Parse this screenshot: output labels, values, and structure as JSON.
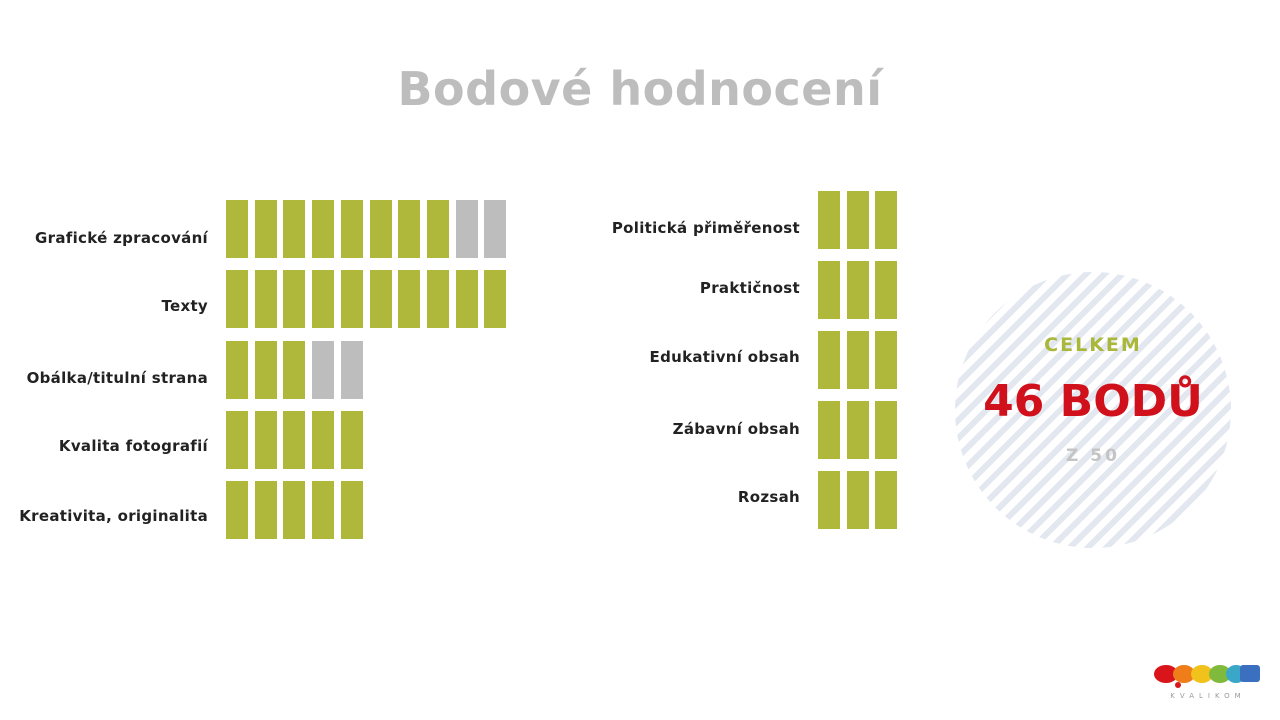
{
  "title": "Bodové hodnocení",
  "colors": {
    "filled": "#afb83b",
    "empty": "#bdbdbd",
    "total": "#d0111b",
    "celkem": "#a9b73a"
  },
  "left_criteria": [
    {
      "label": "Grafické zpracování",
      "score": 8,
      "max": 10
    },
    {
      "label": "Texty",
      "score": 10,
      "max": 10
    },
    {
      "label": "Obálka/titulní strana",
      "score": 3,
      "max": 5
    },
    {
      "label": "Kvalita fotografií",
      "score": 5,
      "max": 5
    },
    {
      "label": "Kreativita, originalita",
      "score": 5,
      "max": 5
    }
  ],
  "right_criteria": [
    {
      "label": "Politická přiměřenost",
      "score": 3,
      "max": 3
    },
    {
      "label": "Praktičnost",
      "score": 3,
      "max": 3
    },
    {
      "label": "Edukativní obsah",
      "score": 3,
      "max": 3
    },
    {
      "label": "Zábavní obsah",
      "score": 3,
      "max": 3
    },
    {
      "label": "Rozsah",
      "score": 3,
      "max": 3
    }
  ],
  "summary": {
    "heading": "CELKEM",
    "total": "46 BODŮ",
    "out_of": "Z 50"
  },
  "logo": {
    "text": "KVALIKOM"
  }
}
